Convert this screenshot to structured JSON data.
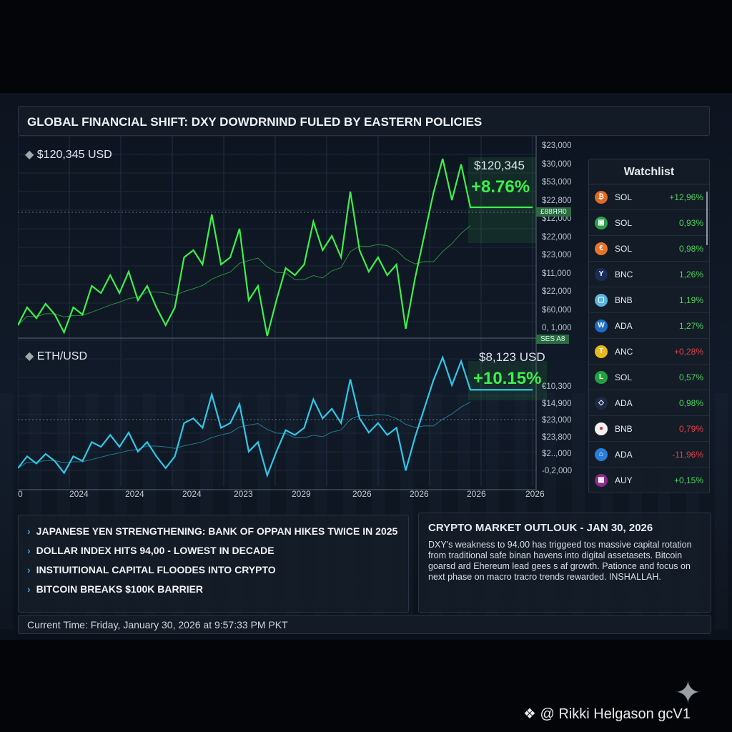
{
  "header": {
    "title": "GLOBAL FINANCIAL SHIFT: DXY DOWDRNIND FULED BY EASTERN POLICIES"
  },
  "colors": {
    "btc_line": "#3cf04a",
    "eth_line": "#2ec8e8",
    "positive": "#4cd45a",
    "negative": "#e0404a"
  },
  "chart_data": [
    {
      "type": "line",
      "label": "$120,345 USD",
      "price": "$120,345",
      "change": "+8.76%",
      "y_ticks": [
        "$23,000",
        "$30,000",
        "$53,000",
        "$22,800",
        "$12,000",
        "$22,000",
        "$23,000",
        "$11,000",
        "$22,000",
        "$60,000",
        "0, 1,000"
      ],
      "tags": [
        "£88ЯЯ0",
        "SES A8"
      ],
      "values": [
        18,
        43,
        28,
        48,
        33,
        8,
        43,
        33,
        73,
        63,
        88,
        63,
        93,
        53,
        73,
        43,
        18,
        43,
        113,
        123,
        103,
        173,
        103,
        113,
        153,
        53,
        73,
        3,
        53,
        98,
        88,
        103,
        163,
        123,
        143,
        113,
        205,
        123,
        93,
        113,
        88,
        103,
        13,
        83,
        143,
        203,
        251,
        193,
        243,
        183,
        183
      ]
    },
    {
      "type": "line",
      "label": "ETH/USD",
      "price": "$8,123 USD",
      "change": "+10.15%",
      "y_ticks": [
        "€10,300",
        "$14,900",
        "$23,000",
        "$23,800",
        "$2..,000",
        "-0,2,000"
      ],
      "values": [
        18,
        43,
        28,
        48,
        33,
        8,
        43,
        33,
        73,
        63,
        88,
        63,
        93,
        53,
        73,
        43,
        18,
        43,
        113,
        123,
        103,
        173,
        103,
        113,
        153,
        53,
        73,
        3,
        53,
        98,
        88,
        103,
        163,
        123,
        143,
        113,
        205,
        123,
        93,
        113,
        88,
        103,
        13,
        83,
        143,
        203,
        251,
        193,
        243,
        183,
        183
      ]
    }
  ],
  "x_ticks": [
    "0",
    "2024",
    "2024",
    "2024",
    "2023",
    "2029",
    "2026",
    "2026",
    "2026",
    "2026"
  ],
  "watchlist": {
    "title": "Watchlist",
    "items": [
      {
        "symbol": "SOL",
        "change": "+12,96%",
        "dir": "up",
        "icon": "bitcoin-icon",
        "color": "#e06a22",
        "glyph": "₿"
      },
      {
        "symbol": "SOL",
        "change": "0,93%",
        "dir": "up",
        "icon": "coin-icon",
        "color": "#2aa04a",
        "glyph": "▣"
      },
      {
        "symbol": "SOL",
        "change": "0,98%",
        "dir": "up",
        "icon": "coin-icon",
        "color": "#e8742a",
        "glyph": "€"
      },
      {
        "symbol": "BNC",
        "change": "1,26%",
        "dir": "up",
        "icon": "coin-icon",
        "color": "#1a2c5a",
        "glyph": "Y"
      },
      {
        "symbol": "BNB",
        "change": "1,19%",
        "dir": "up",
        "icon": "coin-icon",
        "color": "#5ab4e0",
        "glyph": "▢"
      },
      {
        "symbol": "ADA",
        "change": "1,27%",
        "dir": "up",
        "icon": "coin-icon",
        "color": "#1e6ec8",
        "glyph": "W"
      },
      {
        "symbol": "ANC",
        "change": "+0,28%",
        "dir": "down",
        "icon": "coin-icon",
        "color": "#e8b820",
        "glyph": "T"
      },
      {
        "symbol": "SOL",
        "change": "0,57%",
        "dir": "up",
        "icon": "coin-icon",
        "color": "#22a040",
        "glyph": "L"
      },
      {
        "symbol": "ADA",
        "change": "0,98%",
        "dir": "up",
        "icon": "ethereum-icon",
        "color": "#1c2a48",
        "glyph": "◇"
      },
      {
        "symbol": "BNB",
        "change": "0,79%",
        "dir": "down",
        "icon": "coin-icon",
        "color": "#f2f2f2",
        "glyph": "●"
      },
      {
        "symbol": "ADA",
        "change": "-11,96%",
        "dir": "down",
        "icon": "coin-icon",
        "color": "#2a7ed8",
        "glyph": "⌂"
      },
      {
        "symbol": "AUY",
        "change": "+0,15%",
        "dir": "up",
        "icon": "coin-icon",
        "color": "#8a2a8a",
        "glyph": "▦"
      }
    ]
  },
  "news": [
    "JAPANESE YEN STRENGTHENING: BANK OF OPPAN HIKES TWICE IN 2025",
    "DOLLAR INDEX HITS 94,00 - LOWEST IN DECADE",
    "INSTIUITIONAL CAPITAL FLOODES INTO CRYPTO",
    "BITCOIN BREAKS $100K BARRIER"
  ],
  "outlook": {
    "title": "CRYPTO MARKET OUTLOUK - JAN 30, 2026",
    "body": "DXY's weakness to 94.00 has triggeed tos massive capital rotation from traditional safe binan havens into digital assetasets. Bitcoin goarsd ard Ehereum lead gees s af growth. Pationce and focus on next phase on macro tracro trends rewarded. INSHALLAH."
  },
  "status": {
    "time": "Current Time: Friday, January 30, 2026 at 9:57:33 PM PKT"
  },
  "watermark": "@ Rikki Helgason gcV1"
}
